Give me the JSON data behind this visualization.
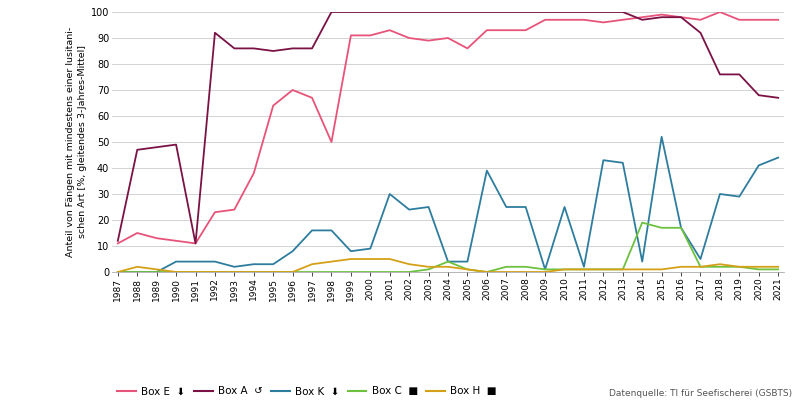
{
  "years": [
    1987,
    1988,
    1989,
    1990,
    1991,
    1992,
    1993,
    1994,
    1995,
    1996,
    1997,
    1998,
    1999,
    2000,
    2001,
    2002,
    2003,
    2004,
    2005,
    2006,
    2007,
    2008,
    2009,
    2010,
    2011,
    2012,
    2013,
    2014,
    2015,
    2016,
    2017,
    2018,
    2019,
    2020,
    2021
  ],
  "box_E": [
    11,
    15,
    13,
    12,
    11,
    23,
    24,
    38,
    64,
    70,
    67,
    50,
    91,
    91,
    93,
    90,
    89,
    90,
    86,
    93,
    93,
    93,
    97,
    97,
    97,
    96,
    97,
    98,
    99,
    98,
    97,
    100,
    97,
    97,
    97
  ],
  "box_A": [
    12,
    47,
    48,
    49,
    11,
    92,
    86,
    86,
    85,
    86,
    86,
    100,
    100,
    100,
    100,
    100,
    100,
    100,
    100,
    100,
    100,
    100,
    100,
    100,
    100,
    100,
    100,
    97,
    98,
    98,
    92,
    76,
    76,
    68,
    67
  ],
  "box_K": [
    0,
    0,
    0,
    4,
    4,
    4,
    2,
    3,
    3,
    8,
    16,
    16,
    8,
    9,
    30,
    24,
    25,
    4,
    4,
    39,
    25,
    25,
    1,
    25,
    2,
    43,
    42,
    4,
    52,
    17,
    5,
    30,
    29,
    41,
    44
  ],
  "box_C": [
    0,
    0,
    0,
    0,
    0,
    0,
    0,
    0,
    0,
    0,
    0,
    0,
    0,
    0,
    0,
    0,
    1,
    4,
    1,
    0,
    2,
    2,
    1,
    1,
    1,
    1,
    1,
    19,
    17,
    17,
    2,
    2,
    2,
    1,
    1
  ],
  "box_H": [
    0,
    2,
    1,
    0,
    0,
    0,
    0,
    0,
    0,
    0,
    3,
    4,
    5,
    5,
    5,
    3,
    2,
    2,
    1,
    0,
    0,
    0,
    0,
    1,
    1,
    1,
    1,
    1,
    1,
    2,
    2,
    3,
    2,
    2,
    2
  ],
  "colors": {
    "box_E": "#e8537a",
    "box_A": "#7b1245",
    "box_K": "#2e7d9e",
    "box_C": "#6dc13e",
    "box_H": "#d4a017"
  },
  "legend_labels": [
    "Box E",
    "Box A",
    "Box K",
    "Box C",
    "Box H"
  ],
  "legend_icons": [
    "⬇",
    "↺",
    "⬇",
    "■",
    "■"
  ],
  "ylabel_line1": "Anteil von Fängen mit mindestens einer lusitani-",
  "ylabel_line2": "schen Art [%, gleitendes 3-Jahres-Mittel]",
  "source": "Datenquelle: TI für Seefischerei (GSBTS)",
  "ylim": [
    0,
    100
  ],
  "yticks": [
    0,
    10,
    20,
    30,
    40,
    50,
    60,
    70,
    80,
    90,
    100
  ],
  "background_color": "#ffffff",
  "grid_color": "#cccccc"
}
